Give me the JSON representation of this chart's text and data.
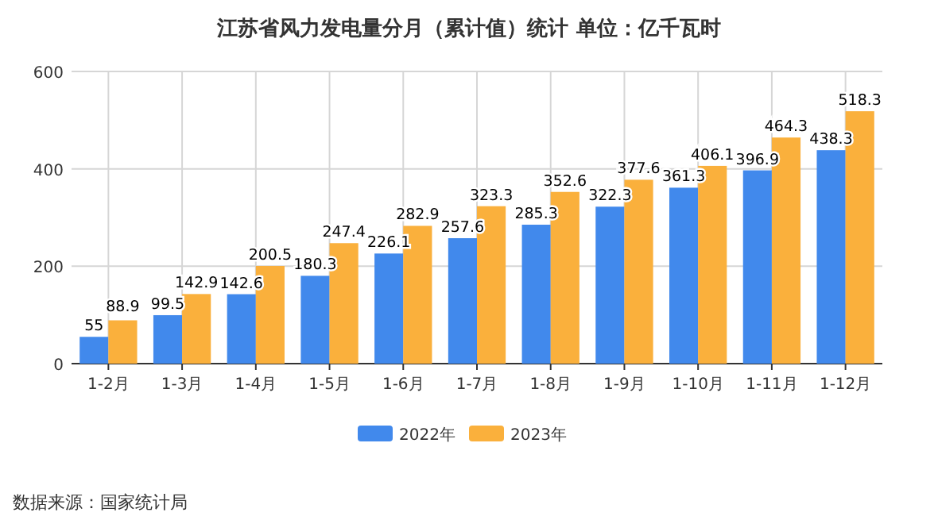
{
  "chart_data": {
    "type": "bar",
    "title": "江苏省风力发电量分月（累计值）统计 单位：亿千瓦时",
    "categories": [
      "1-2月",
      "1-3月",
      "1-4月",
      "1-5月",
      "1-6月",
      "1-7月",
      "1-8月",
      "1-9月",
      "1-10月",
      "1-11月",
      "1-12月"
    ],
    "series": [
      {
        "name": "2022年",
        "color": "#4189ec",
        "values": [
          55,
          99.5,
          142.6,
          180.3,
          226.1,
          257.6,
          285.3,
          322.3,
          361.3,
          396.9,
          438.3
        ]
      },
      {
        "name": "2023年",
        "color": "#fab03c",
        "values": [
          88.9,
          142.9,
          200.5,
          247.4,
          282.9,
          323.3,
          352.6,
          377.6,
          406.1,
          464.3,
          518.3
        ]
      }
    ],
    "ylim": [
      0,
      600
    ],
    "yticks": [
      0,
      200,
      400,
      600
    ],
    "grid": true,
    "legend": "bottom",
    "data_labels": true,
    "annotations": [
      "数据来源：国家统计局"
    ]
  }
}
